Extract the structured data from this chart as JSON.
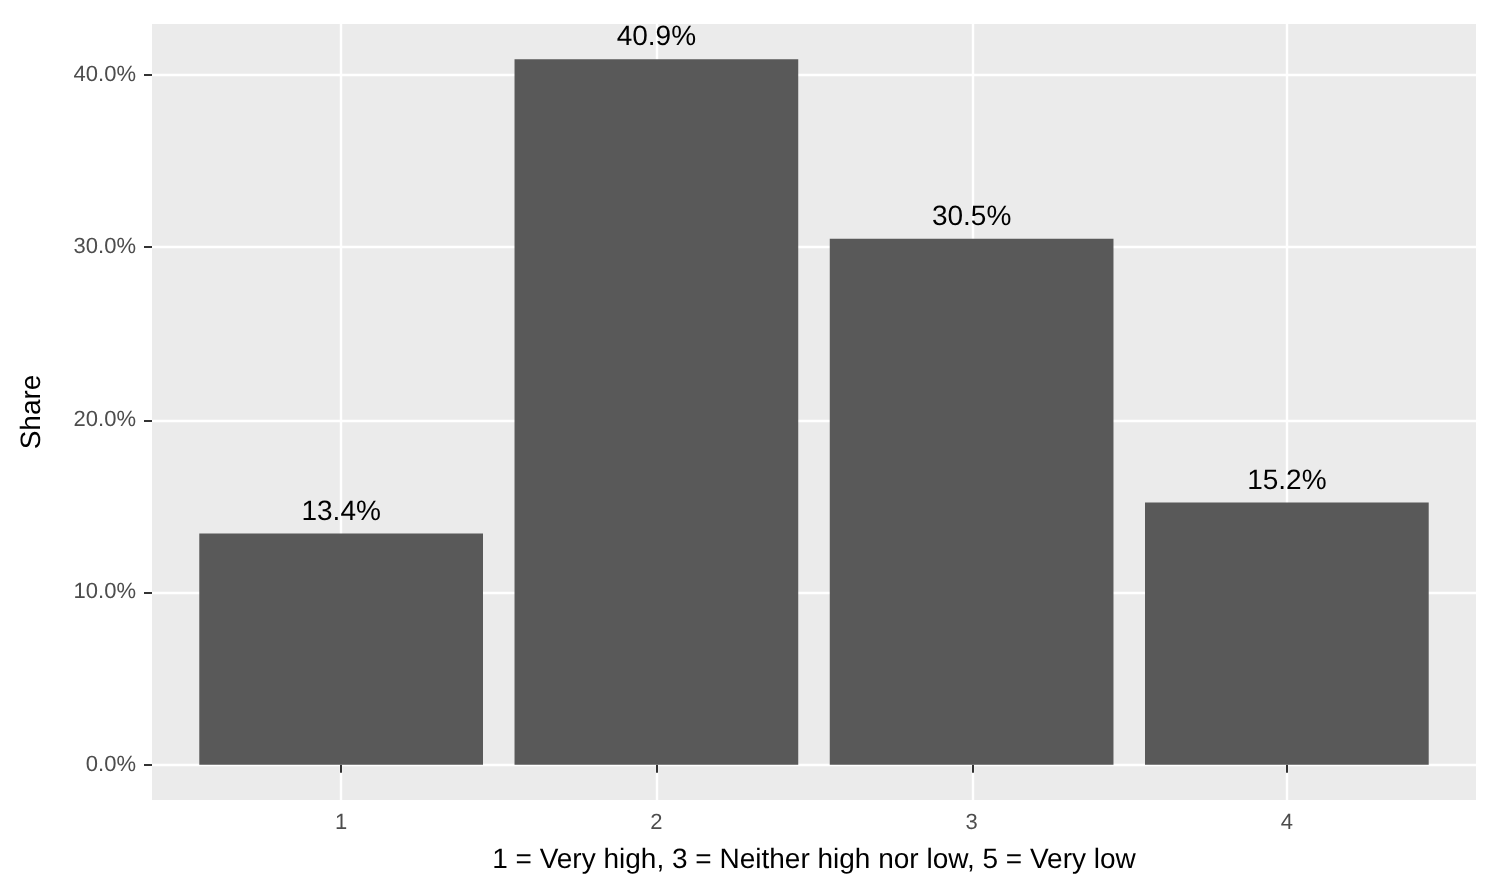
{
  "chart_data": {
    "type": "bar",
    "xlabel": "1 = Very high, 3 = Neither high nor low, 5 = Very low",
    "ylabel": "Share",
    "categories": [
      "1",
      "2",
      "3",
      "4"
    ],
    "values": [
      13.4,
      40.9,
      30.5,
      15.2
    ],
    "value_labels": [
      "13.4%",
      "40.9%",
      "30.5%",
      "15.2%"
    ],
    "color": "#595959",
    "ylim": [
      -2.045,
      42.945
    ],
    "yticks": [
      {
        "value": 0,
        "label": "0.0%"
      },
      {
        "value": 10,
        "label": "10.0%"
      },
      {
        "value": 20,
        "label": "20.0%"
      },
      {
        "value": 30,
        "label": "30.0%"
      },
      {
        "value": 40,
        "label": "40.0%"
      }
    ],
    "grid": true
  }
}
